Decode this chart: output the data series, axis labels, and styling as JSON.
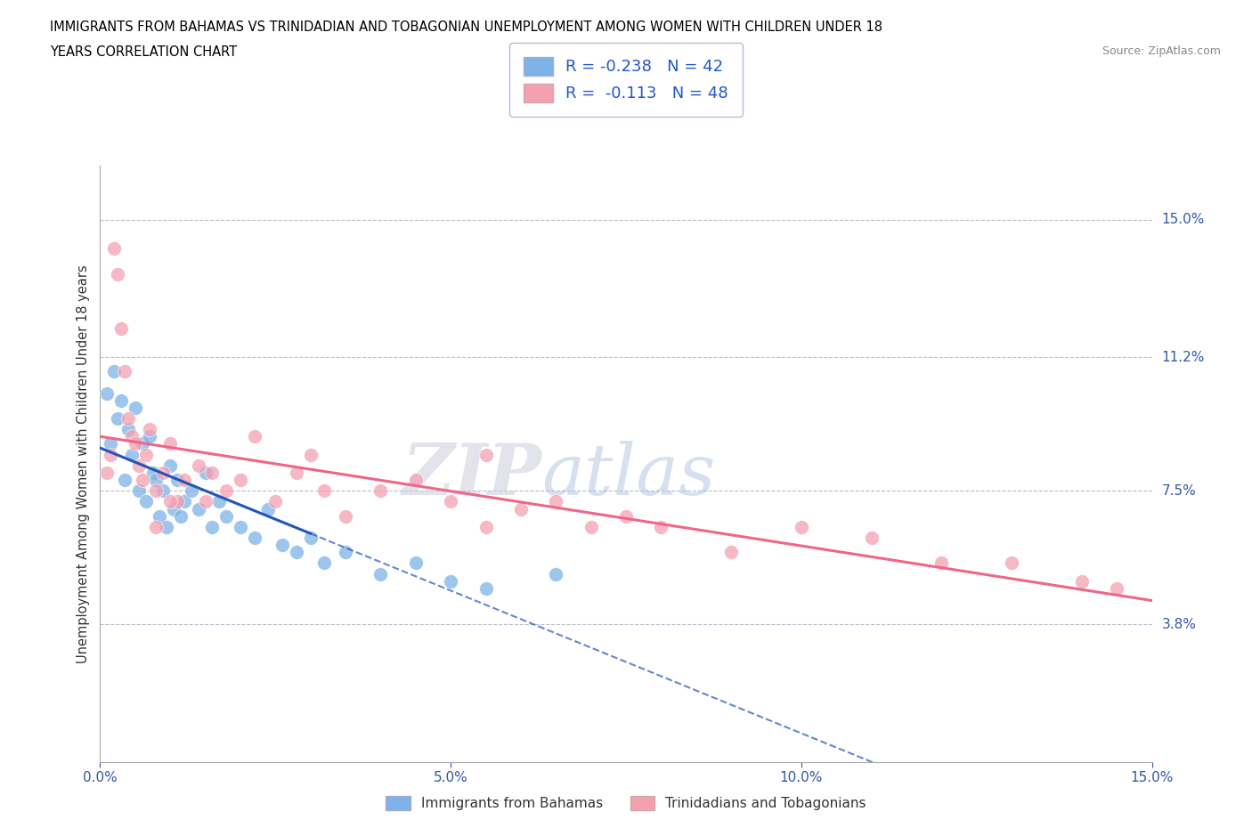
{
  "title_line1": "IMMIGRANTS FROM BAHAMAS VS TRINIDADIAN AND TOBAGONIAN UNEMPLOYMENT AMONG WOMEN WITH CHILDREN UNDER 18",
  "title_line2": "YEARS CORRELATION CHART",
  "source": "Source: ZipAtlas.com",
  "ylabel": "Unemployment Among Women with Children Under 18 years",
  "xlabel_ticks": [
    "0.0%",
    "5.0%",
    "10.0%",
    "15.0%"
  ],
  "xlabel_vals": [
    0.0,
    5.0,
    10.0,
    15.0
  ],
  "right_yticks": [
    3.8,
    7.5,
    11.2,
    15.0
  ],
  "right_ytick_labels": [
    "3.8%",
    "7.5%",
    "11.2%",
    "15.0%"
  ],
  "xlim": [
    0.0,
    15.0
  ],
  "ylim": [
    0.0,
    16.5
  ],
  "legend_r1": "R = -0.238   N = 42",
  "legend_r2": "R =  -0.113   N = 48",
  "legend_label1": "Immigrants from Bahamas",
  "legend_label2": "Trinidadians and Tobagonians",
  "blue_color": "#7EB3E8",
  "pink_color": "#F4A0B0",
  "blue_line_color": "#2255BB",
  "pink_line_color": "#EE6688",
  "watermark_zip": "ZIP",
  "watermark_atlas": "atlas",
  "blue_x": [
    0.1,
    0.15,
    0.2,
    0.25,
    0.3,
    0.35,
    0.4,
    0.45,
    0.5,
    0.55,
    0.6,
    0.65,
    0.7,
    0.75,
    0.8,
    0.85,
    0.9,
    0.95,
    1.0,
    1.05,
    1.1,
    1.15,
    1.2,
    1.3,
    1.4,
    1.5,
    1.6,
    1.7,
    1.8,
    2.0,
    2.2,
    2.4,
    2.6,
    2.8,
    3.0,
    3.2,
    3.5,
    4.0,
    4.5,
    5.0,
    5.5,
    6.5
  ],
  "blue_y": [
    10.2,
    8.8,
    10.8,
    9.5,
    10.0,
    7.8,
    9.2,
    8.5,
    9.8,
    7.5,
    8.8,
    7.2,
    9.0,
    8.0,
    7.8,
    6.8,
    7.5,
    6.5,
    8.2,
    7.0,
    7.8,
    6.8,
    7.2,
    7.5,
    7.0,
    8.0,
    6.5,
    7.2,
    6.8,
    6.5,
    6.2,
    7.0,
    6.0,
    5.8,
    6.2,
    5.5,
    5.8,
    5.2,
    5.5,
    5.0,
    4.8,
    5.2
  ],
  "pink_x": [
    0.1,
    0.15,
    0.2,
    0.25,
    0.3,
    0.35,
    0.4,
    0.45,
    0.5,
    0.55,
    0.6,
    0.65,
    0.7,
    0.8,
    0.9,
    1.0,
    1.1,
    1.2,
    1.4,
    1.6,
    1.8,
    2.0,
    2.2,
    2.5,
    2.8,
    3.0,
    3.2,
    3.5,
    4.0,
    4.5,
    5.0,
    5.5,
    6.0,
    6.5,
    7.0,
    7.5,
    8.0,
    9.0,
    10.0,
    11.0,
    12.0,
    13.0,
    14.0,
    14.5,
    1.5,
    0.8,
    1.0,
    5.5
  ],
  "pink_y": [
    8.0,
    8.5,
    14.2,
    13.5,
    12.0,
    10.8,
    9.5,
    9.0,
    8.8,
    8.2,
    7.8,
    8.5,
    9.2,
    7.5,
    8.0,
    8.8,
    7.2,
    7.8,
    8.2,
    8.0,
    7.5,
    7.8,
    9.0,
    7.2,
    8.0,
    8.5,
    7.5,
    6.8,
    7.5,
    7.8,
    7.2,
    6.5,
    7.0,
    7.2,
    6.5,
    6.8,
    6.5,
    5.8,
    6.5,
    6.2,
    5.5,
    5.5,
    5.0,
    4.8,
    7.2,
    6.5,
    7.2,
    8.5
  ],
  "blue_solid_xmax": 3.0,
  "pink_solid_xmax": 15.0
}
